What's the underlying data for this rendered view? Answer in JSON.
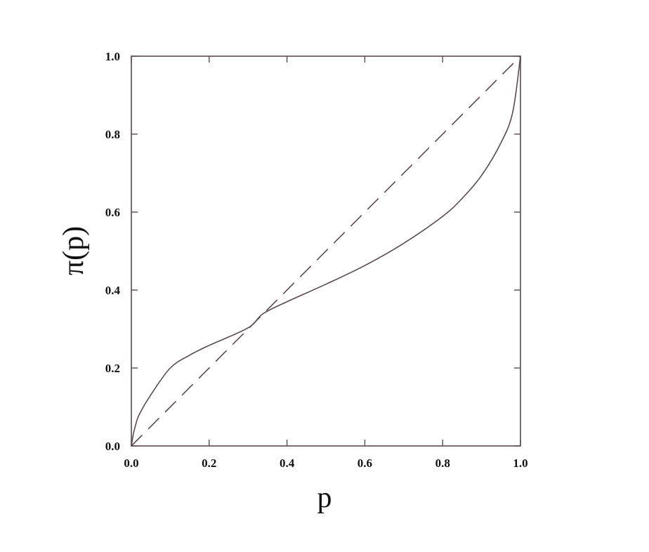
{
  "chart_data": {
    "type": "line",
    "title": "",
    "xlabel": "p",
    "ylabel": "π(p)",
    "xlim": [
      0,
      1
    ],
    "ylim": [
      0,
      1
    ],
    "xticks": [
      "0.0",
      "0.2",
      "0.4",
      "0.6",
      "0.8",
      "1.0"
    ],
    "yticks": [
      "0.0",
      "0.2",
      "0.4",
      "0.6",
      "0.8",
      "1.0"
    ],
    "grid": false,
    "legend": "none",
    "series": [
      {
        "style": "solid",
        "color": "#5a4a50",
        "x": [
          0,
          0.005,
          0.01,
          0.02,
          0.05,
          0.1,
          0.15,
          0.2,
          0.3,
          0.338,
          0.4,
          0.5,
          0.6,
          0.7,
          0.8,
          0.85,
          0.9,
          0.95,
          0.98,
          1.0
        ],
        "y": [
          0,
          0.03,
          0.05,
          0.08,
          0.131,
          0.2,
          0.233,
          0.258,
          0.303,
          0.339,
          0.37,
          0.415,
          0.463,
          0.52,
          0.589,
          0.635,
          0.694,
          0.778,
          0.856,
          1.0
        ]
      },
      {
        "style": "dashed",
        "color": "#5a4a50",
        "x": [
          0,
          1
        ],
        "y": [
          0,
          1
        ]
      }
    ]
  }
}
